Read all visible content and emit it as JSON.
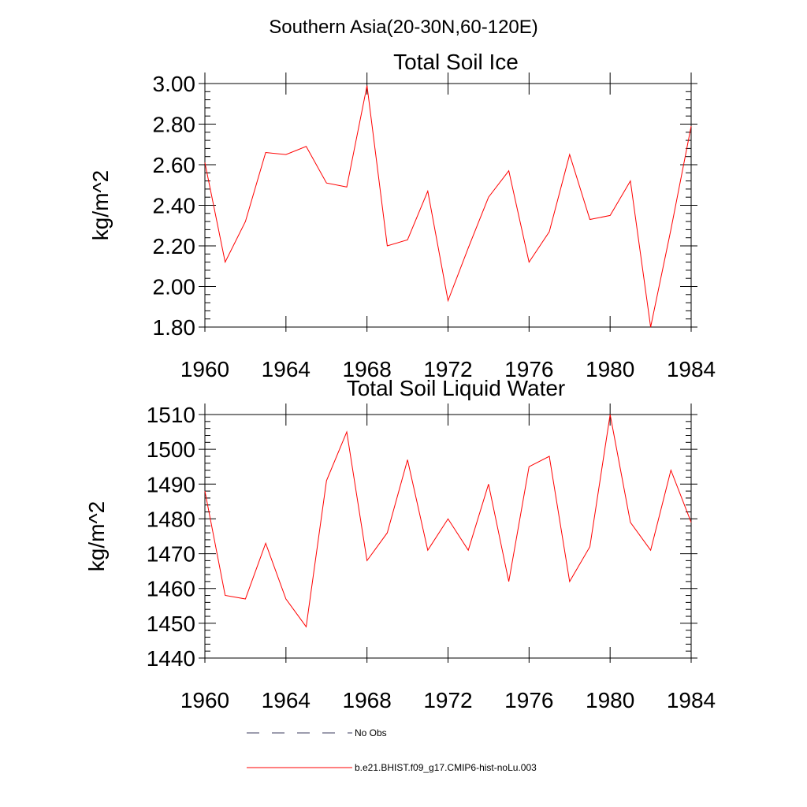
{
  "main_title": "Southern Asia(20-30N,60-120E)",
  "legend": {
    "items": [
      {
        "label": "No Obs",
        "style": "dashed",
        "color": "#3b3b5c"
      },
      {
        "label": "b.e21.BHIST.f09_g17.CMIP6-hist-noLu.003",
        "style": "solid",
        "color": "#ff0000"
      }
    ]
  },
  "chart_data": [
    {
      "type": "line",
      "title": "Total Soil Ice",
      "xlabel": "",
      "ylabel": "kg/m^2",
      "xlim": [
        1960,
        1984
      ],
      "ylim": [
        1.8,
        3.0
      ],
      "xticks": [
        1960,
        1964,
        1968,
        1972,
        1976,
        1980,
        1984
      ],
      "xtick_labels": [
        "1960",
        "1964",
        "1968",
        "1972",
        "1976",
        "1980",
        "1984"
      ],
      "yticks": [
        1.8,
        2.0,
        2.2,
        2.4,
        2.6,
        2.8,
        3.0
      ],
      "ytick_labels": [
        "1.80",
        "2.00",
        "2.20",
        "2.40",
        "2.60",
        "2.80",
        "3.00"
      ],
      "x": [
        1960,
        1961,
        1962,
        1963,
        1964,
        1965,
        1966,
        1967,
        1968,
        1969,
        1970,
        1971,
        1972,
        1973,
        1974,
        1975,
        1976,
        1977,
        1978,
        1979,
        1980,
        1981,
        1982,
        1983,
        1984
      ],
      "series": [
        {
          "color": "#ff0000",
          "values": [
            2.61,
            2.12,
            2.32,
            2.66,
            2.65,
            2.69,
            2.51,
            2.49,
            2.99,
            2.2,
            2.23,
            2.47,
            1.93,
            2.19,
            2.44,
            2.57,
            2.12,
            2.27,
            2.65,
            2.33,
            2.35,
            2.52,
            1.8,
            2.28,
            2.79
          ]
        }
      ]
    },
    {
      "type": "line",
      "title": "Total Soil Liquid Water",
      "xlabel": "",
      "ylabel": "kg/m^2",
      "xlim": [
        1960,
        1984
      ],
      "ylim": [
        1440,
        1510
      ],
      "xticks": [
        1960,
        1964,
        1968,
        1972,
        1976,
        1980,
        1984
      ],
      "xtick_labels": [
        "1960",
        "1964",
        "1968",
        "1972",
        "1976",
        "1980",
        "1984"
      ],
      "yticks": [
        1440,
        1450,
        1460,
        1470,
        1480,
        1490,
        1500,
        1510
      ],
      "ytick_labels": [
        "1440",
        "1450",
        "1460",
        "1470",
        "1480",
        "1490",
        "1500",
        "1510"
      ],
      "x": [
        1960,
        1961,
        1962,
        1963,
        1964,
        1965,
        1966,
        1967,
        1968,
        1969,
        1970,
        1971,
        1972,
        1973,
        1974,
        1975,
        1976,
        1977,
        1978,
        1979,
        1980,
        1981,
        1982,
        1983,
        1984
      ],
      "series": [
        {
          "color": "#ff0000",
          "values": [
            1488,
            1458,
            1457,
            1473,
            1457,
            1449,
            1491,
            1505,
            1468,
            1476,
            1497,
            1471,
            1480,
            1471,
            1490,
            1462,
            1495,
            1498,
            1462,
            1472,
            1510,
            1479,
            1471,
            1494,
            1479
          ]
        }
      ]
    }
  ]
}
